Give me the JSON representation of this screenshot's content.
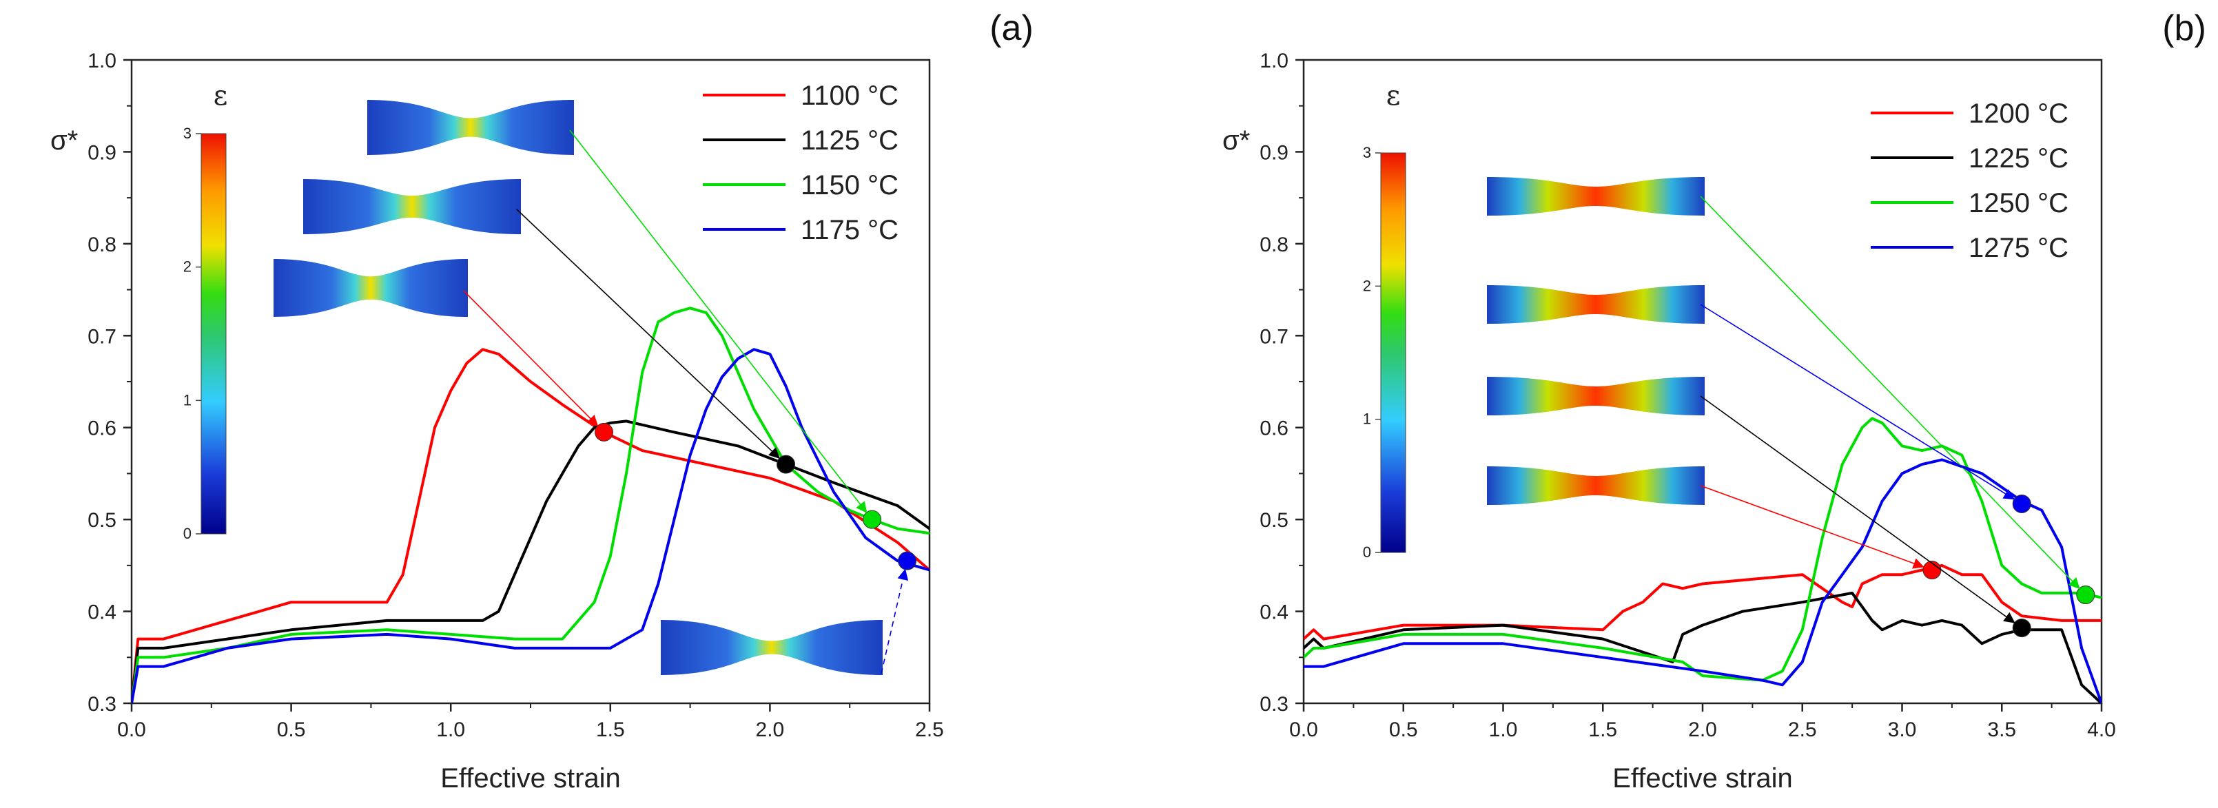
{
  "chart_data": [
    {
      "panel_label": "(a)",
      "type": "line",
      "xlabel": "Effective strain",
      "ylabel": "σ*",
      "xlim": [
        0.0,
        2.5
      ],
      "ylim": [
        0.3,
        1.0
      ],
      "xticks": [
        "0.0",
        "0.5",
        "1.0",
        "1.5",
        "2.0",
        "2.5"
      ],
      "yticks": [
        "0.3",
        "0.4",
        "0.5",
        "0.6",
        "0.7",
        "0.8",
        "0.9",
        "1.0"
      ],
      "colorbar": {
        "title": "ε",
        "ticks": [
          "0",
          "1",
          "2",
          "3"
        ]
      },
      "series": [
        {
          "name": "1100 °C",
          "color": "#ff0000",
          "x": [
            0.0,
            0.02,
            0.1,
            0.3,
            0.5,
            0.6,
            0.8,
            0.85,
            0.9,
            0.95,
            1.0,
            1.05,
            1.1,
            1.15,
            1.25,
            1.35,
            1.48,
            1.6,
            1.8,
            2.0,
            2.2,
            2.4,
            2.5
          ],
          "y": [
            0.3,
            0.37,
            0.37,
            0.39,
            0.41,
            0.41,
            0.41,
            0.44,
            0.52,
            0.6,
            0.64,
            0.67,
            0.685,
            0.68,
            0.65,
            0.625,
            0.595,
            0.575,
            0.56,
            0.545,
            0.52,
            0.475,
            0.445
          ]
        },
        {
          "name": "1125 °C",
          "color": "#000000",
          "x": [
            0.0,
            0.02,
            0.1,
            0.3,
            0.5,
            0.8,
            1.0,
            1.1,
            1.15,
            1.2,
            1.25,
            1.3,
            1.35,
            1.4,
            1.45,
            1.5,
            1.55,
            1.7,
            1.9,
            2.05,
            2.2,
            2.4,
            2.5
          ],
          "y": [
            0.3,
            0.36,
            0.36,
            0.37,
            0.38,
            0.39,
            0.39,
            0.39,
            0.4,
            0.44,
            0.48,
            0.52,
            0.55,
            0.58,
            0.6,
            0.605,
            0.607,
            0.595,
            0.58,
            0.56,
            0.54,
            0.515,
            0.49
          ]
        },
        {
          "name": "1150 °C",
          "color": "#00dd00",
          "x": [
            0.0,
            0.02,
            0.1,
            0.3,
            0.5,
            0.8,
            1.0,
            1.2,
            1.35,
            1.45,
            1.5,
            1.55,
            1.6,
            1.65,
            1.7,
            1.75,
            1.8,
            1.85,
            1.95,
            2.05,
            2.15,
            2.25,
            2.32,
            2.4,
            2.5
          ],
          "y": [
            0.3,
            0.35,
            0.35,
            0.36,
            0.375,
            0.38,
            0.375,
            0.37,
            0.37,
            0.41,
            0.46,
            0.55,
            0.66,
            0.715,
            0.725,
            0.73,
            0.725,
            0.7,
            0.62,
            0.56,
            0.53,
            0.51,
            0.5,
            0.49,
            0.485
          ]
        },
        {
          "name": "1175 °C",
          "color": "#0000ee",
          "x": [
            0.0,
            0.02,
            0.1,
            0.3,
            0.5,
            0.8,
            1.0,
            1.2,
            1.4,
            1.5,
            1.6,
            1.65,
            1.7,
            1.75,
            1.8,
            1.85,
            1.9,
            1.95,
            2.0,
            2.05,
            2.1,
            2.2,
            2.3,
            2.4,
            2.5
          ],
          "y": [
            0.3,
            0.34,
            0.34,
            0.36,
            0.37,
            0.375,
            0.37,
            0.36,
            0.36,
            0.36,
            0.38,
            0.43,
            0.5,
            0.57,
            0.62,
            0.655,
            0.675,
            0.685,
            0.68,
            0.645,
            0.6,
            0.53,
            0.48,
            0.455,
            0.445
          ]
        }
      ],
      "markers": [
        {
          "series": "1100 °C",
          "x": 1.48,
          "y": 0.595
        },
        {
          "series": "1125 °C",
          "x": 2.05,
          "y": 0.56
        },
        {
          "series": "1150 °C",
          "x": 2.32,
          "y": 0.5
        },
        {
          "series": "1175 °C",
          "x": 2.43,
          "y": 0.455
        }
      ]
    },
    {
      "panel_label": "(b)",
      "type": "line",
      "xlabel": "Effective strain",
      "ylabel": "σ*",
      "xlim": [
        0.0,
        4.0
      ],
      "ylim": [
        0.3,
        1.0
      ],
      "xticks": [
        "0.0",
        "0.5",
        "1.0",
        "1.5",
        "2.0",
        "2.5",
        "3.0",
        "3.5",
        "4.0"
      ],
      "yticks": [
        "0.3",
        "0.4",
        "0.5",
        "0.6",
        "0.7",
        "0.8",
        "0.9",
        "1.0"
      ],
      "colorbar": {
        "title": "ε",
        "ticks": [
          "0",
          "1",
          "2",
          "3"
        ]
      },
      "series": [
        {
          "name": "1200 °C",
          "color": "#ff0000",
          "x": [
            0.0,
            0.05,
            0.1,
            0.5,
            1.0,
            1.5,
            1.6,
            1.7,
            1.8,
            1.9,
            2.0,
            2.5,
            2.7,
            2.75,
            2.8,
            2.9,
            3.0,
            3.1,
            3.2,
            3.3,
            3.4,
            3.5,
            3.6,
            3.8,
            4.0
          ],
          "y": [
            0.37,
            0.38,
            0.37,
            0.385,
            0.385,
            0.38,
            0.4,
            0.41,
            0.43,
            0.425,
            0.43,
            0.44,
            0.41,
            0.405,
            0.43,
            0.44,
            0.44,
            0.445,
            0.45,
            0.44,
            0.44,
            0.41,
            0.395,
            0.39,
            0.39
          ]
        },
        {
          "name": "1225 °C",
          "color": "#000000",
          "x": [
            0.0,
            0.05,
            0.1,
            0.5,
            1.0,
            1.5,
            1.85,
            1.9,
            2.0,
            2.2,
            2.5,
            2.75,
            2.85,
            2.9,
            3.0,
            3.1,
            3.2,
            3.3,
            3.4,
            3.5,
            3.6,
            3.8,
            3.9,
            4.0
          ],
          "y": [
            0.36,
            0.37,
            0.36,
            0.38,
            0.385,
            0.37,
            0.345,
            0.375,
            0.385,
            0.4,
            0.41,
            0.42,
            0.39,
            0.38,
            0.39,
            0.385,
            0.39,
            0.385,
            0.365,
            0.375,
            0.38,
            0.38,
            0.32,
            0.3
          ]
        },
        {
          "name": "1250 °C",
          "color": "#00dd00",
          "x": [
            0.0,
            0.05,
            0.1,
            0.5,
            1.0,
            1.5,
            1.9,
            2.0,
            2.3,
            2.4,
            2.5,
            2.6,
            2.7,
            2.8,
            2.85,
            2.9,
            3.0,
            3.1,
            3.2,
            3.3,
            3.4,
            3.5,
            3.6,
            3.7,
            3.9,
            4.0
          ],
          "y": [
            0.35,
            0.36,
            0.36,
            0.375,
            0.375,
            0.36,
            0.345,
            0.33,
            0.325,
            0.335,
            0.38,
            0.48,
            0.56,
            0.6,
            0.61,
            0.605,
            0.58,
            0.575,
            0.58,
            0.57,
            0.52,
            0.45,
            0.43,
            0.42,
            0.42,
            0.415
          ]
        },
        {
          "name": "1275 °C",
          "color": "#0000ee",
          "x": [
            0.0,
            0.05,
            0.1,
            0.5,
            1.0,
            1.5,
            2.0,
            2.3,
            2.4,
            2.5,
            2.6,
            2.7,
            2.8,
            2.9,
            3.0,
            3.1,
            3.2,
            3.4,
            3.6,
            3.7,
            3.8,
            3.9,
            4.0
          ],
          "y": [
            0.34,
            0.34,
            0.34,
            0.365,
            0.365,
            0.35,
            0.335,
            0.325,
            0.32,
            0.345,
            0.41,
            0.44,
            0.47,
            0.52,
            0.55,
            0.56,
            0.565,
            0.55,
            0.52,
            0.51,
            0.47,
            0.36,
            0.3
          ]
        }
      ],
      "markers": [
        {
          "series": "1200 °C",
          "x": 3.15,
          "y": 0.445
        },
        {
          "series": "1225 °C",
          "x": 3.6,
          "y": 0.382
        },
        {
          "series": "1250 °C",
          "x": 3.92,
          "y": 0.418
        },
        {
          "series": "1275 °C",
          "x": 3.6,
          "y": 0.517
        }
      ]
    }
  ]
}
